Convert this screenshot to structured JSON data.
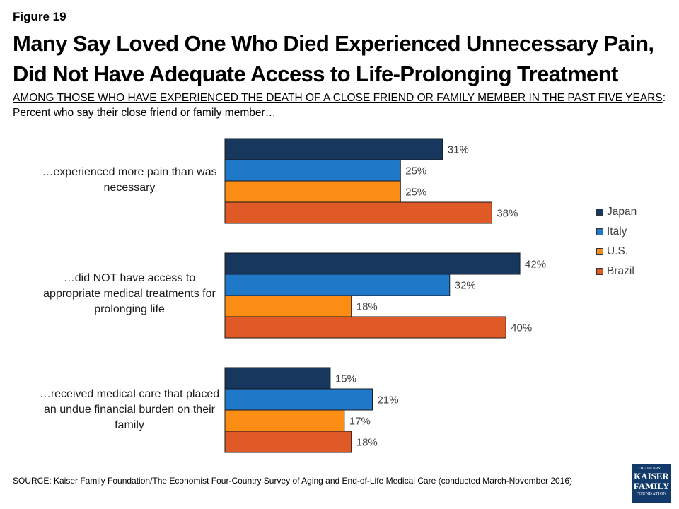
{
  "figure_label": "Figure 19",
  "title": "Many Say Loved One Who Died Experienced Unnecessary Pain, Did Not Have Adequate Access to Life-Prolonging Treatment",
  "subtitle_underlined": "AMONG THOSE WHO HAVE EXPERIENCED THE DEATH OF A CLOSE FRIEND OR FAMILY MEMBER IN THE PAST FIVE YEARS",
  "subtitle_colon": ":",
  "subtitle_line2": "Percent who say their close friend or family member…",
  "source": "SOURCE: Kaiser Family Foundation/The Economist Four-Country Survey of Aging and End-of-Life Medical Care (conducted March-November 2016)",
  "logo": {
    "line1": "THE HENRY J.",
    "line2": "KAISER",
    "line3": "FAMILY",
    "line4": "FOUNDATION"
  },
  "chart_data": {
    "type": "bar",
    "orientation": "horizontal",
    "categories": [
      "…experienced more pain than was necessary",
      "…did NOT have access to appropriate medical treatments for prolonging life",
      "…received medical care that placed an undue financial burden on their family"
    ],
    "series": [
      {
        "name": "Japan",
        "color": "#17375e",
        "values": [
          31,
          42,
          15
        ]
      },
      {
        "name": "Italy",
        "color": "#1f78c8",
        "values": [
          25,
          32,
          21
        ]
      },
      {
        "name": "U.S.",
        "color": "#fb8c14",
        "values": [
          25,
          18,
          17
        ]
      },
      {
        "name": "Brazil",
        "color": "#e05a28",
        "values": [
          38,
          40,
          18
        ]
      }
    ],
    "value_suffix": "%",
    "legend_position": "right",
    "grid": false,
    "xlabel": "",
    "ylabel": ""
  }
}
